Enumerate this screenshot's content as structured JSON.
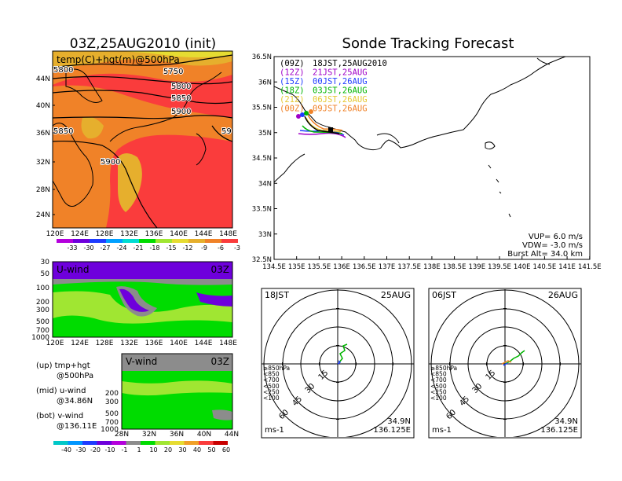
{
  "left_title": "03Z,25AUG2010 (init)",
  "right_title": "Sonde Tracking Forecast",
  "temp_panel": {
    "label": "temp(C)+hgt(m)@500hPa",
    "lat_ticks": [
      "44N",
      "40N",
      "36N",
      "32N",
      "28N",
      "24N"
    ],
    "lon_ticks": [
      "120E",
      "124E",
      "128E",
      "132E",
      "136E",
      "140E",
      "144E",
      "148E"
    ],
    "contour_labels": [
      "5800",
      "5750",
      "5800",
      "5850",
      "5900",
      "5850",
      "5900",
      "59"
    ],
    "colorbar": [
      "-33",
      "-30",
      "-27",
      "-24",
      "-21",
      "-18",
      "-15",
      "-12",
      "-9",
      "-6",
      "-3"
    ],
    "colors": [
      "#b400dc",
      "#6e00dc",
      "#1e3cff",
      "#00a0ff",
      "#00dcd2",
      "#00dc00",
      "#a0e632",
      "#e6dc32",
      "#e6af2d",
      "#f08228",
      "#fa3c3c"
    ]
  },
  "uwind_panel": {
    "label": "U-wind",
    "time": "03Z",
    "p_ticks": [
      "30",
      "50",
      "100",
      "200",
      "300",
      "500",
      "700",
      "1000"
    ],
    "lon_ticks": [
      "120E",
      "124E",
      "128E",
      "132E",
      "136E",
      "140E",
      "144E",
      "148E"
    ]
  },
  "vwind_panel": {
    "label": "V-wind",
    "time": "03Z",
    "p_ticks": [
      "200",
      "300",
      "500",
      "700",
      "1000"
    ],
    "lat_ticks": [
      "28N",
      "32N",
      "36N",
      "40N",
      "44N"
    ]
  },
  "wind_colorbar": [
    "-40",
    "-30",
    "-20",
    "-10",
    "-1",
    "1",
    "10",
    "20",
    "30",
    "40",
    "50",
    "60"
  ],
  "wind_colors": [
    "#00c8c8",
    "#0096ff",
    "#1e3cff",
    "#6e00dc",
    "#b400dc",
    "#8c8c8c",
    "#00dc00",
    "#a0e632",
    "#e6dc32",
    "#f0a028",
    "#fa3c3c",
    "#c80000"
  ],
  "legend_notes": [
    {
      "line1": "(up) tmp+hgt",
      "line2": "@500hPa"
    },
    {
      "line1": "(mid) u-wind",
      "line2": "@34.86N"
    },
    {
      "line1": "(bot) v-wind",
      "line2": "@136.11E"
    }
  ],
  "track_map": {
    "lat_ticks": [
      "36.5N",
      "36N",
      "35.5N",
      "35N",
      "34.5N",
      "34N",
      "33.5N",
      "33N",
      "32.5N"
    ],
    "lon_ticks": [
      "134.5E",
      "135E",
      "135.5E",
      "136E",
      "136.5E",
      "137E",
      "137.5E",
      "138E",
      "138.5E",
      "139E",
      "139.5E",
      "140E",
      "140.5E",
      "141E",
      "141.5E"
    ],
    "launches": [
      {
        "code": "(09Z)",
        "text": "18JST,25AUG2010",
        "color": "#000000"
      },
      {
        "code": "(12Z)",
        "text": "21JST,25AUG",
        "color": "#a000c8"
      },
      {
        "code": "(15Z)",
        "text": "00JST,26AUG",
        "color": "#1e3cff"
      },
      {
        "code": "(18Z)",
        "text": "03JST,26AUG",
        "color": "#00b400"
      },
      {
        "code": "(21Z)",
        "text": "06JST,26AUG",
        "color": "#e6c832"
      },
      {
        "code": "(00Z)",
        "text": "09JST,26AUG",
        "color": "#f08228"
      }
    ],
    "params": [
      "VUP=  6.0 m/s",
      "VDW= -3.0 m/s",
      "Burst Alt= 34.0 km"
    ]
  },
  "hodo_left": {
    "time": "18JST",
    "date": "25AUG",
    "rings": [
      "15",
      "30",
      "45",
      "60"
    ],
    "levels": [
      {
        "label": "≥850hPa",
        "color": "#fa3c3c"
      },
      {
        "label": "<850",
        "color": "#f08228"
      },
      {
        "label": "<700",
        "color": "#e6c832"
      },
      {
        "label": "<500",
        "color": "#00b400"
      },
      {
        "label": "<250",
        "color": "#00c8c8"
      },
      {
        "label": "<100",
        "color": "#1e3cff"
      }
    ],
    "unit": "ms-1",
    "lat": "34.9N",
    "lon": "136.125E"
  },
  "hodo_right": {
    "time": "06JST",
    "date": "26AUG",
    "rings": [
      "15",
      "30",
      "45",
      "60"
    ],
    "levels": [
      {
        "label": "≥850hPa",
        "color": "#fa3c3c"
      },
      {
        "label": "<850",
        "color": "#f08228"
      },
      {
        "label": "<700",
        "color": "#e6c832"
      },
      {
        "label": "<500",
        "color": "#00b400"
      },
      {
        "label": "<250",
        "color": "#00c8c8"
      },
      {
        "label": "<100",
        "color": "#1e3cff"
      }
    ],
    "unit": "ms-1",
    "lat": "34.9N",
    "lon": "136.125E"
  }
}
